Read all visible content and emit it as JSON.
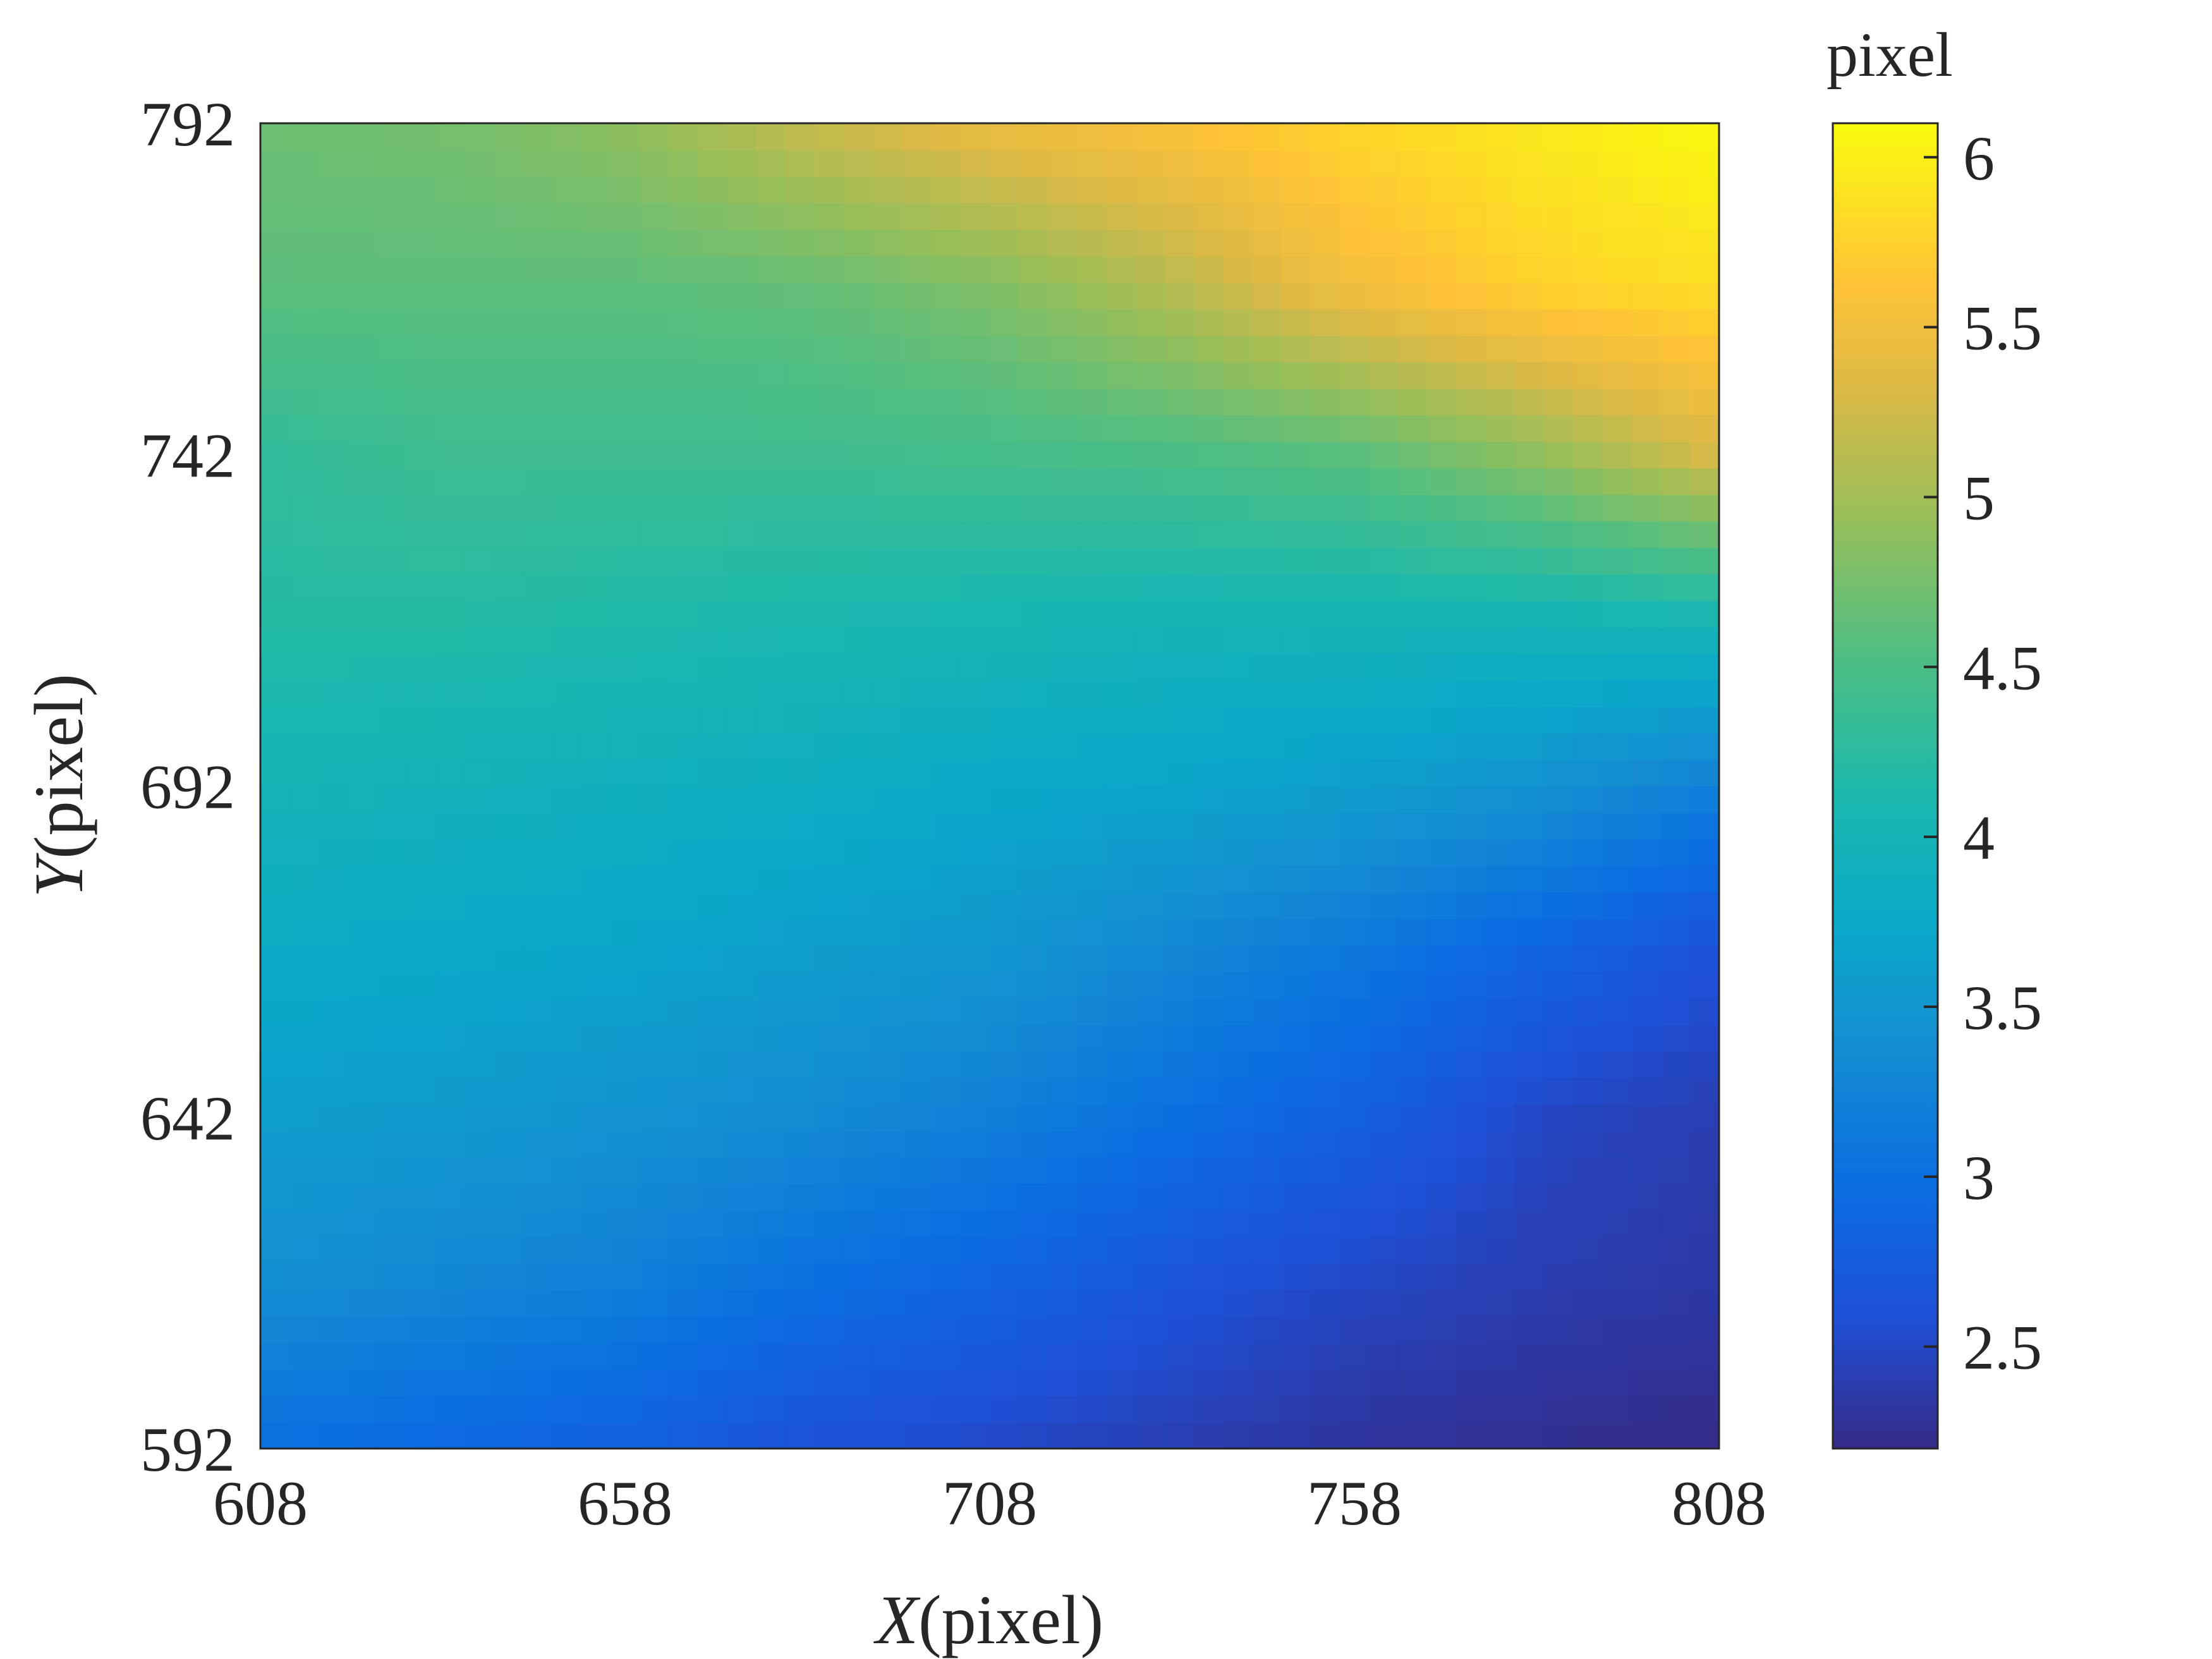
{
  "chart_data": {
    "type": "heatmap",
    "title": "",
    "xlabel": "(pixel)",
    "xlabel_var": "X",
    "ylabel": "(pixel)",
    "ylabel_var": "Y",
    "xlim": [
      608,
      808
    ],
    "ylim": [
      592,
      792
    ],
    "xticks": [
      "608",
      "658",
      "708",
      "758",
      "808"
    ],
    "yticks": [
      "592",
      "642",
      "692",
      "742",
      "792"
    ],
    "colorbar": {
      "label": "pixel",
      "range": [
        2.2,
        6.1
      ],
      "ticks": [
        "2.5",
        "3",
        "3.5",
        "4",
        "4.5",
        "5",
        "5.5",
        "6"
      ],
      "colormap": "parula"
    },
    "grid": false,
    "x": [
      608,
      633,
      658,
      683,
      708,
      733,
      758,
      783,
      808
    ],
    "y": [
      592,
      617,
      642,
      667,
      692,
      717,
      742,
      767,
      792
    ],
    "z": [
      [
        3.0,
        2.9,
        2.8,
        2.6,
        2.5,
        2.4,
        2.3,
        2.25,
        2.2
      ],
      [
        3.4,
        3.3,
        3.2,
        3.0,
        2.85,
        2.65,
        2.5,
        2.4,
        2.35
      ],
      [
        3.6,
        3.55,
        3.45,
        3.35,
        3.2,
        3.0,
        2.8,
        2.5,
        2.4
      ],
      [
        3.8,
        3.75,
        3.7,
        3.6,
        3.5,
        3.3,
        3.1,
        2.85,
        2.6
      ],
      [
        4.0,
        3.95,
        3.9,
        3.85,
        3.75,
        3.7,
        3.6,
        3.45,
        3.2
      ],
      [
        4.2,
        4.2,
        4.15,
        4.1,
        4.05,
        4.0,
        4.0,
        4.0,
        4.05
      ],
      [
        4.3,
        4.4,
        4.4,
        4.4,
        4.45,
        4.5,
        4.6,
        4.9,
        5.3
      ],
      [
        4.6,
        4.6,
        4.6,
        4.65,
        4.8,
        5.1,
        5.5,
        5.75,
        5.85
      ],
      [
        4.7,
        4.75,
        4.9,
        5.2,
        5.45,
        5.6,
        5.8,
        5.95,
        6.1
      ]
    ]
  }
}
